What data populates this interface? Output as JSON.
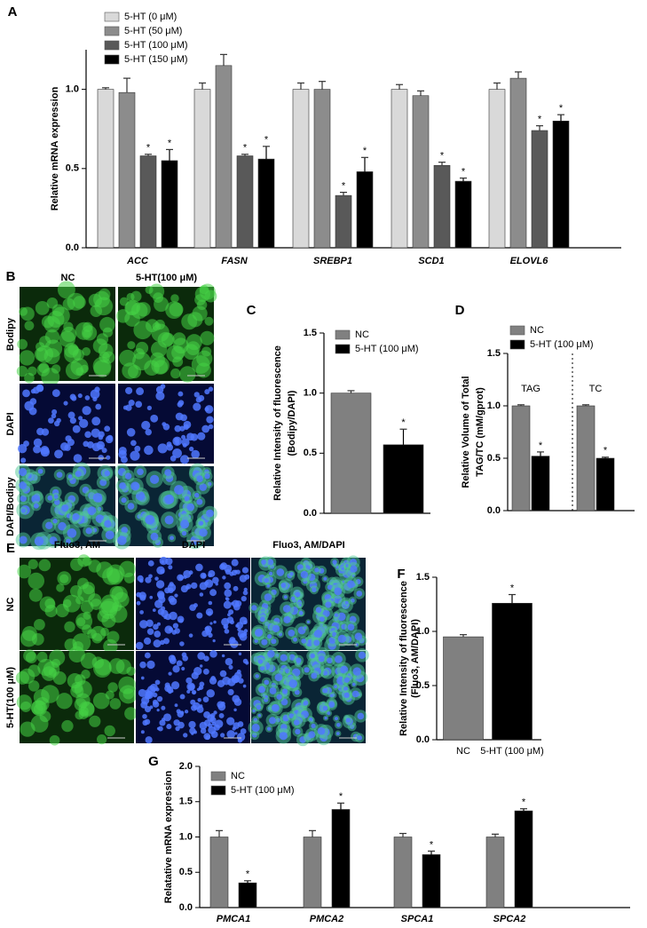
{
  "chart_data": [
    {
      "type": "bar",
      "panel": "A",
      "ylabel": "Relative mRNA expression",
      "categories": [
        "ACC",
        "FASN",
        "SREBP1",
        "SCD1",
        "ELOVL6"
      ],
      "ylim": [
        0,
        1.25
      ],
      "yticks": [
        {
          "value": 0,
          "label": "0.0"
        },
        0.5,
        {
          "value": 1,
          "label": "1.0"
        }
      ],
      "series": [
        {
          "name": "5-HT (0 μM)",
          "color": "#d9d9d9",
          "values": [
            1.0,
            1.0,
            1.0,
            1.0,
            1.0
          ],
          "errors": [
            0.01,
            0.04,
            0.04,
            0.03,
            0.04
          ]
        },
        {
          "name": "5-HT (50 μM)",
          "color": "#8c8c8c",
          "values": [
            0.98,
            1.15,
            1.0,
            0.96,
            1.07
          ],
          "errors": [
            0.09,
            0.07,
            0.05,
            0.03,
            0.04
          ]
        },
        {
          "name": "5-HT (100 μM)",
          "color": "#595959",
          "values": [
            0.58,
            0.58,
            0.33,
            0.52,
            0.74
          ],
          "errors": [
            0.01,
            0.01,
            0.02,
            0.02,
            0.03
          ],
          "significance": [
            "*",
            "*",
            "*",
            "*",
            "*"
          ]
        },
        {
          "name": "5-HT (150 μM)",
          "color": "#000000",
          "values": [
            0.55,
            0.56,
            0.48,
            0.42,
            0.8
          ],
          "errors": [
            0.07,
            0.08,
            0.09,
            0.02,
            0.04
          ],
          "significance": [
            "*",
            "*",
            "*",
            "*",
            "*"
          ]
        }
      ]
    },
    {
      "type": "bar",
      "panel": "C",
      "ylabel": [
        "Relative Intensity of fluorescence",
        "(Bodipy/DAPI)"
      ],
      "categories": [
        null
      ],
      "ylim": [
        0,
        1.5
      ],
      "yticks": [
        {
          "value": 0,
          "label": "0.0"
        },
        0.5,
        {
          "value": 1,
          "label": "1.0"
        },
        1.5
      ],
      "series": [
        {
          "name": "NC",
          "color": "#808080",
          "values": [
            1.0
          ],
          "errors": [
            0.02
          ]
        },
        {
          "name": "5-HT (100 μM)",
          "color": "#000000",
          "values": [
            0.57
          ],
          "errors": [
            0.13
          ],
          "significance": [
            "*"
          ]
        }
      ]
    },
    {
      "type": "bar",
      "panel": "D",
      "ylabel": [
        "Relative Volume of Total",
        "TAG/TC (mM/gprot)"
      ],
      "categories": [
        "TAG",
        "TC"
      ],
      "ylim": [
        0,
        1.5
      ],
      "yticks": [
        {
          "value": 0,
          "label": "0.0"
        },
        0.5,
        {
          "value": 1,
          "label": "1.0"
        },
        1.5
      ],
      "series": [
        {
          "name": "NC",
          "color": "#808080",
          "values": [
            1.0,
            1.0
          ],
          "errors": [
            0.01,
            0.01
          ]
        },
        {
          "name": "5-HT (100 μM)",
          "color": "#000000",
          "values": [
            0.52,
            0.5
          ],
          "errors": [
            0.04,
            0.01
          ],
          "significance": [
            "*",
            "*"
          ]
        }
      ]
    },
    {
      "type": "bar",
      "panel": "F",
      "ylabel": [
        "Relative Intensity of fluorescence",
        "(Fluo3, AM/DAPI)"
      ],
      "categories": [
        "NC",
        "5-HT (100 μM)"
      ],
      "ylim": [
        0,
        1.5
      ],
      "yticks": [
        {
          "value": 0,
          "label": "0.0"
        },
        0.5,
        {
          "value": 1,
          "label": "1.0"
        },
        1.5
      ],
      "series": [
        {
          "colors": [
            "#808080",
            "#000000"
          ],
          "values": [
            0.95,
            1.26
          ],
          "errors": [
            0.02,
            0.08
          ],
          "significance": [
            null,
            "*"
          ]
        }
      ]
    },
    {
      "type": "bar",
      "panel": "G",
      "ylabel": "Relatative mRNA expression",
      "categories": [
        "PMCA1",
        "PMCA2",
        "SPCA1",
        "SPCA2"
      ],
      "ylim": [
        0,
        2
      ],
      "yticks": [
        {
          "value": 0,
          "label": "0.0"
        },
        0.5,
        {
          "value": 1,
          "label": "1.0"
        },
        1.5,
        {
          "value": 2,
          "label": "2.0"
        }
      ],
      "series": [
        {
          "name": "NC",
          "color": "#808080",
          "values": [
            1.0,
            1.0,
            1.0,
            1.0
          ],
          "errors": [
            0.09,
            0.09,
            0.05,
            0.04
          ]
        },
        {
          "name": "5-HT (100 μM)",
          "color": "#000000",
          "values": [
            0.35,
            1.39,
            0.75,
            1.37
          ],
          "errors": [
            0.03,
            0.09,
            0.05,
            0.03
          ],
          "significance": [
            "*",
            "*",
            "*",
            "*"
          ]
        }
      ]
    }
  ],
  "image_panels": [
    {
      "panel": "B",
      "columns": [
        "NC",
        "5-HT(100 μM)"
      ],
      "rows": [
        "Bodipy",
        "DAPI",
        "DAPI/Bodipy"
      ]
    },
    {
      "panel": "E",
      "columns": [
        "Fluo3, AM",
        "DAPI",
        "Fluo3, AM/DAPI"
      ],
      "rows": [
        "NC",
        "5-HT(100 μM)"
      ]
    }
  ]
}
